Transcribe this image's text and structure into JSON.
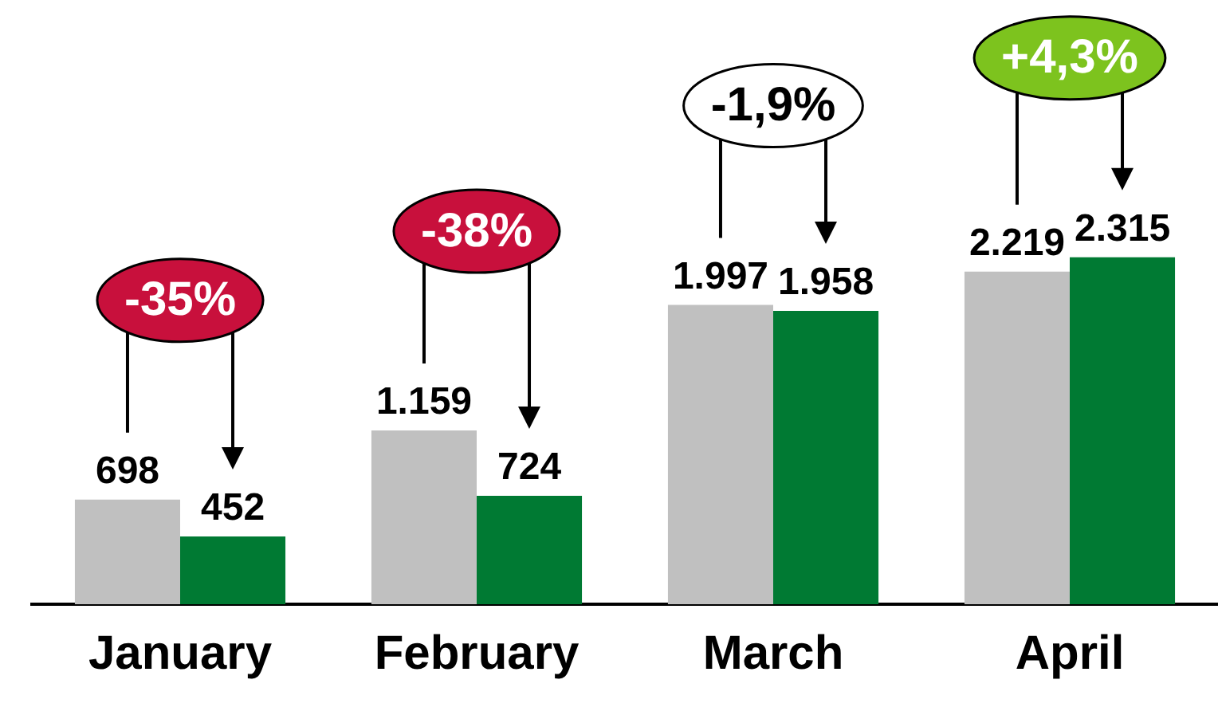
{
  "chart_data": {
    "type": "bar",
    "categories": [
      "January",
      "February",
      "March",
      "April"
    ],
    "series": [
      {
        "color": "#c0c0c0",
        "values": [
          698,
          1159,
          1997,
          2219
        ],
        "value_labels": [
          "698",
          "1.159",
          "1.997",
          "2.219"
        ]
      },
      {
        "color": "#007a33",
        "values": [
          452,
          724,
          1958,
          2315
        ],
        "value_labels": [
          "452",
          "724",
          "1.958",
          "2.315"
        ]
      }
    ],
    "tick_labels": "x",
    "grid": false,
    "legend": false,
    "annotations": [
      "-35%",
      "-38%",
      "-1,9%",
      "+4,3%"
    ]
  }
}
